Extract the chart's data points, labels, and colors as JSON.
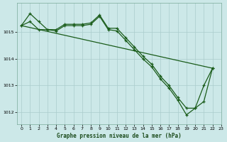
{
  "title": "Graphe pression niveau de la mer (hPa)",
  "bg_color": "#cce8e8",
  "grid_color": "#aacccc",
  "line_color": "#1a5c1a",
  "xlim": [
    -0.5,
    23
  ],
  "ylim": [
    1011.55,
    1016.1
  ],
  "yticks": [
    1012,
    1013,
    1014,
    1015
  ],
  "xticks": [
    0,
    1,
    2,
    3,
    4,
    5,
    6,
    7,
    8,
    9,
    10,
    11,
    12,
    13,
    14,
    15,
    16,
    17,
    18,
    19,
    20,
    21,
    22,
    23
  ],
  "line1": {
    "x": [
      0,
      1,
      2,
      3,
      4,
      5,
      6,
      7,
      8,
      9,
      10,
      11,
      12,
      13,
      14,
      15,
      16,
      17,
      18,
      19,
      20,
      21,
      22
    ],
    "y": [
      1015.25,
      1015.7,
      1015.4,
      1015.1,
      1015.1,
      1015.3,
      1015.3,
      1015.3,
      1015.35,
      1015.65,
      1015.15,
      1015.15,
      1014.8,
      1014.45,
      1014.1,
      1013.8,
      1013.35,
      1013.0,
      1012.55,
      1012.15,
      1012.15,
      1013.0,
      1013.65
    ]
  },
  "line2": {
    "x": [
      0,
      1,
      2,
      3,
      4,
      5,
      6,
      7,
      8,
      9,
      10,
      11,
      12,
      13,
      14,
      15,
      16,
      17,
      18,
      19,
      20,
      21,
      22
    ],
    "y": [
      1015.25,
      1015.4,
      1015.1,
      1015.1,
      1015.05,
      1015.25,
      1015.25,
      1015.25,
      1015.3,
      1015.6,
      1015.1,
      1015.05,
      1014.7,
      1014.35,
      1014.0,
      1013.7,
      1013.25,
      1012.9,
      1012.45,
      1011.9,
      1012.15,
      1012.4,
      1013.65
    ]
  },
  "line3": {
    "x": [
      0,
      22
    ],
    "y": [
      1015.25,
      1013.65
    ]
  }
}
